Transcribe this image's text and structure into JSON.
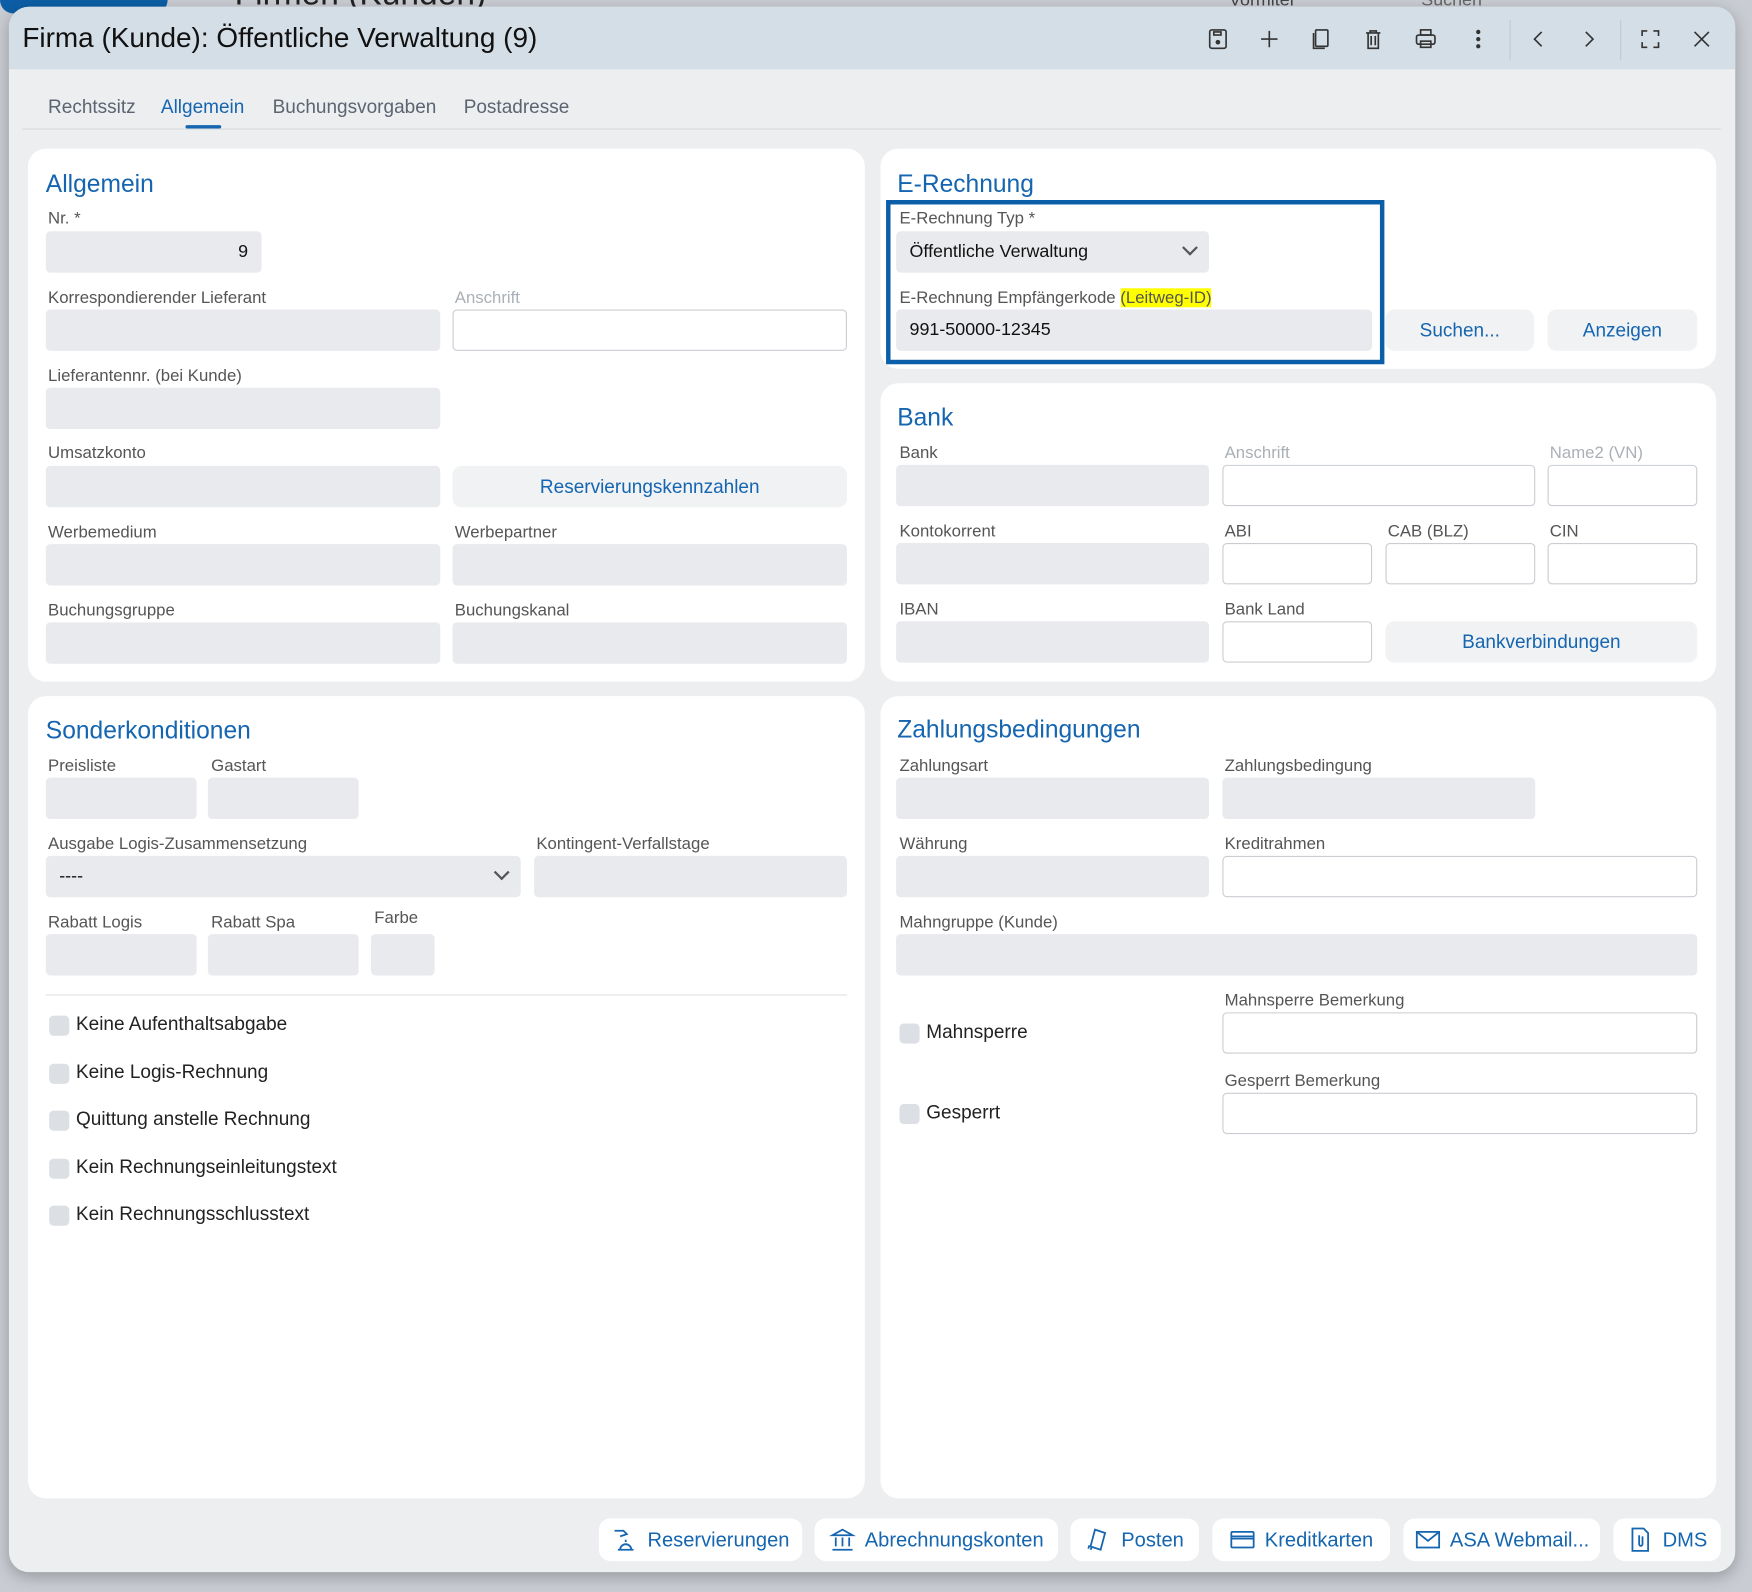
{
  "background": {
    "app_title": "Firmen (Kunden)",
    "filter_label": "Vormiter",
    "search_placeholder": "Suchen"
  },
  "window": {
    "title": "Firma (Kunde): Öffentliche Verwaltung (9)",
    "toolbar": [
      "save-icon",
      "plus-icon",
      "copy-icon",
      "trash-icon",
      "print-icon",
      "more-vertical-icon",
      "chevron-left-icon",
      "chevron-right-icon",
      "fullscreen-icon",
      "close-icon"
    ]
  },
  "tabs": [
    {
      "label": "Rechtssitz",
      "active": false
    },
    {
      "label": "Allgemein",
      "active": true
    },
    {
      "label": "Buchungsvorgaben",
      "active": false
    },
    {
      "label": "Postadresse",
      "active": false
    }
  ],
  "allgemein": {
    "title": "Allgemein",
    "nr_label": "Nr. *",
    "nr_value": "9",
    "korr_label": "Korrespondierender Lieferant",
    "korr_value": "",
    "anschrift_label": "Anschrift",
    "anschrift_value": "",
    "liefnr_label": "Lieferantennr. (bei Kunde)",
    "liefnr_value": "",
    "umsatz_label": "Umsatzkonto",
    "umsatz_value": "",
    "reserv_button": "Reservierungskennzahlen",
    "werbemedium_label": "Werbemedium",
    "werbemedium_value": "",
    "werbepartner_label": "Werbepartner",
    "werbepartner_value": "",
    "buchungsgruppe_label": "Buchungsgruppe",
    "buchungsgruppe_value": "",
    "buchungskanal_label": "Buchungskanal",
    "buchungskanal_value": ""
  },
  "erechnung": {
    "title": "E-Rechnung",
    "typ_label": "E-Rechnung Typ *",
    "typ_value": "Öffentliche Verwaltung",
    "code_label": "E-Rechnung Empfängerkode",
    "code_label_highlight": "(Leitweg-ID)",
    "code_value": "991-50000-12345",
    "suchen_button": "Suchen...",
    "anzeigen_button": "Anzeigen",
    "highlight_color": "#ffff00",
    "frame_color": "#0a5fa8"
  },
  "bank": {
    "title": "Bank",
    "bank_label": "Bank",
    "anschrift_label": "Anschrift",
    "name2_label": "Name2 (VN)",
    "kontokorrent_label": "Kontokorrent",
    "abi_label": "ABI",
    "cab_label": "CAB (BLZ)",
    "cin_label": "CIN",
    "iban_label": "IBAN",
    "land_label": "Bank Land",
    "bankverbindungen_button": "Bankverbindungen"
  },
  "sonder": {
    "title": "Sonderkonditionen",
    "preisliste_label": "Preisliste",
    "gastart_label": "Gastart",
    "logis_label": "Ausgabe Logis-Zusammensetzung",
    "logis_value": "----",
    "kontingent_label": "Kontingent-Verfallstage",
    "rabatt_logis_label": "Rabatt Logis",
    "rabatt_spa_label": "Rabatt Spa",
    "farbe_label": "Farbe",
    "checkboxes": [
      {
        "label": "Keine Aufenthaltsabgabe",
        "checked": false
      },
      {
        "label": "Keine Logis-Rechnung",
        "checked": false
      },
      {
        "label": "Quittung anstelle Rechnung",
        "checked": false
      },
      {
        "label": "Kein Rechnungseinleitungstext",
        "checked": false
      },
      {
        "label": "Kein Rechnungsschlusstext",
        "checked": false
      }
    ]
  },
  "zahlung": {
    "title": "Zahlungsbedingungen",
    "zahlungsart_label": "Zahlungsart",
    "zahlungsbedingung_label": "Zahlungsbedingung",
    "waehrung_label": "Währung",
    "kreditrahmen_label": "Kreditrahmen",
    "mahngruppe_label": "Mahngruppe (Kunde)",
    "mahnsperre_label": "Mahnsperre",
    "mahnsperre_checked": false,
    "mahnsperre_bem_label": "Mahnsperre Bemerkung",
    "gesperrt_label": "Gesperrt",
    "gesperrt_checked": false,
    "gesperrt_bem_label": "Gesperrt Bemerkung"
  },
  "footer_buttons": [
    {
      "label": "Reservierungen",
      "icon": "reception-bell-icon"
    },
    {
      "label": "Abrechnungskonten",
      "icon": "bank-icon"
    },
    {
      "label": "Posten",
      "icon": "receipt-icon"
    },
    {
      "label": "Kreditkarten",
      "icon": "credit-card-icon"
    },
    {
      "label": "ASA Webmail...",
      "icon": "mail-icon"
    },
    {
      "label": "DMS",
      "icon": "document-attachment-icon"
    }
  ],
  "colors": {
    "accent": "#1565b0",
    "header": "#d4dee6",
    "body": "#eceef0"
  }
}
